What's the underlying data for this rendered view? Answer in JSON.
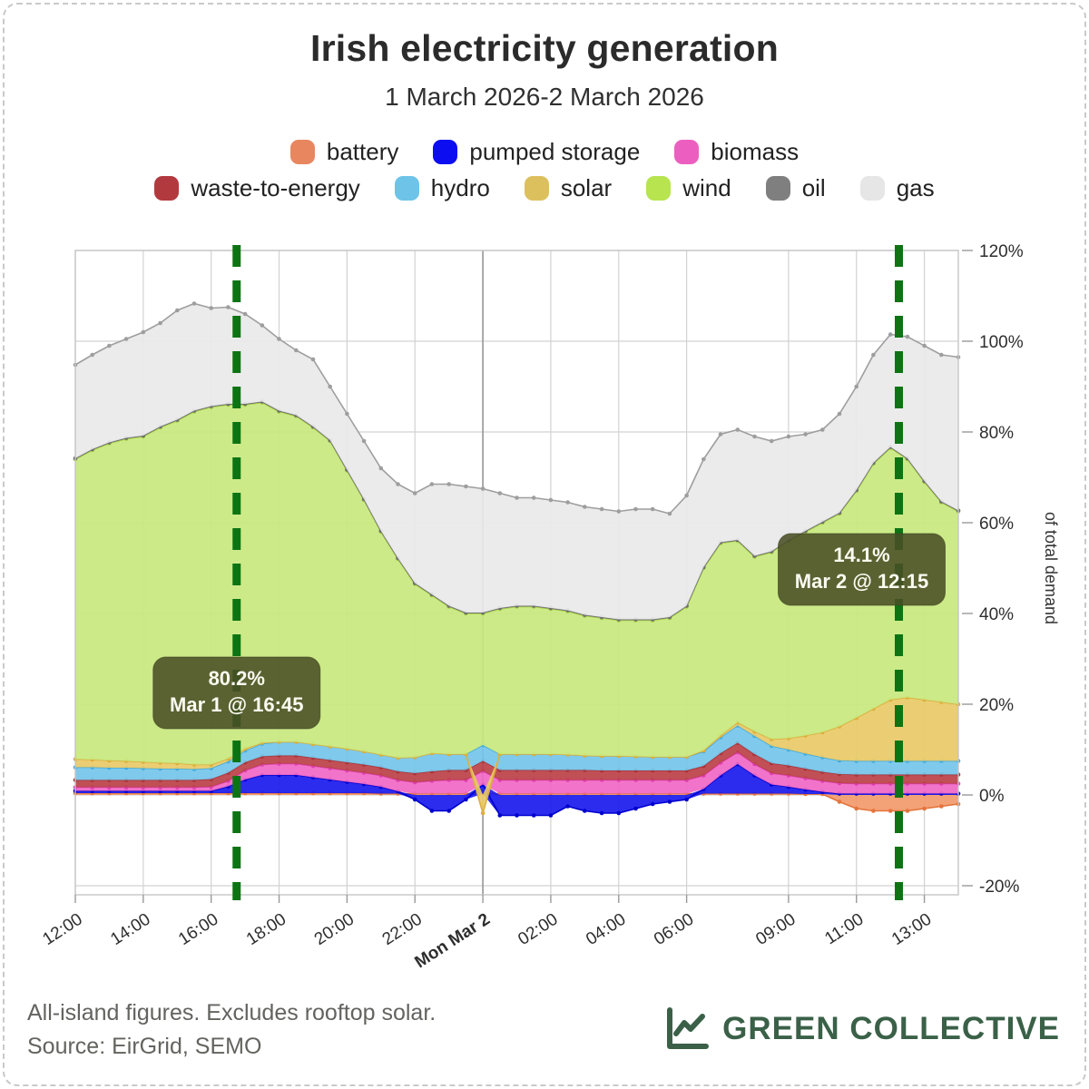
{
  "header": {
    "title": "Irish electricity generation",
    "subtitle": "1 March 2026-2 March 2026"
  },
  "legend": {
    "rows": [
      [
        0,
        1,
        2
      ],
      [
        3,
        4,
        5,
        6,
        7,
        8
      ]
    ]
  },
  "chart_data": {
    "type": "area",
    "stacked": true,
    "title": "Irish electricity generation",
    "subtitle": "1 March 2026-2 March 2026",
    "ylabel": "of total demand",
    "ylim": [
      -22,
      120
    ],
    "yticks": [
      -20,
      0,
      20,
      40,
      60,
      80,
      100,
      120
    ],
    "ytick_suffix": "%",
    "grid": true,
    "legend_position": "top-center",
    "x": {
      "start_hours": 0,
      "step_hours": 0.5,
      "count": 53,
      "start_label": "12:00 Mar 1",
      "end_label": "14:00 Mar 2"
    },
    "xticks": [
      {
        "hour": 0,
        "label": "12:00",
        "bold": false
      },
      {
        "hour": 2,
        "label": "14:00",
        "bold": false
      },
      {
        "hour": 4,
        "label": "16:00",
        "bold": false
      },
      {
        "hour": 6,
        "label": "18:00",
        "bold": false
      },
      {
        "hour": 8,
        "label": "20:00",
        "bold": false
      },
      {
        "hour": 10,
        "label": "22:00",
        "bold": false
      },
      {
        "hour": 12,
        "label": "Mon Mar 2",
        "bold": true
      },
      {
        "hour": 14,
        "label": "02:00",
        "bold": false
      },
      {
        "hour": 16,
        "label": "04:00",
        "bold": false
      },
      {
        "hour": 18,
        "label": "06:00",
        "bold": false
      },
      {
        "hour": 21,
        "label": "09:00",
        "bold": false
      },
      {
        "hour": 23,
        "label": "11:00",
        "bold": false
      },
      {
        "hour": 25,
        "label": "13:00",
        "bold": false
      }
    ],
    "series": [
      {
        "name": "battery",
        "color": "#e8875f",
        "fill": "#f2996b",
        "stroke": "#e4743c",
        "values": [
          0.4,
          0.4,
          0.4,
          0.4,
          0.4,
          0.4,
          0.4,
          0.4,
          0.4,
          0.4,
          0.4,
          0.4,
          0.4,
          0.4,
          0.4,
          0.4,
          0.4,
          0.4,
          0.3,
          0.3,
          0.3,
          0.3,
          0.3,
          0.3,
          0.3,
          0.3,
          0.3,
          0.3,
          0.3,
          0.3,
          0.3,
          0.3,
          0.3,
          0.3,
          0.3,
          0.3,
          0.3,
          0.3,
          0.3,
          0.3,
          0.3,
          0.3,
          0.3,
          0.2,
          0.2,
          -1.5,
          -3,
          -3.5,
          -3.5,
          -3.5,
          -3,
          -2.5,
          -2
        ]
      },
      {
        "name": "pumped storage",
        "color": "#0d0df2",
        "fill": "#1a1aee",
        "stroke": "#0000cf",
        "values": [
          0.5,
          0.5,
          0.5,
          0.5,
          0.5,
          0.5,
          0.5,
          0.5,
          0.5,
          1.5,
          3,
          4,
          4,
          4,
          3.5,
          3,
          2.5,
          2,
          1.5,
          0.5,
          -1,
          -3.5,
          -3.5,
          -1,
          2,
          -4.5,
          -4.5,
          -4.5,
          -4.5,
          -2.5,
          -3.5,
          -4,
          -4,
          -3,
          -2,
          -1.5,
          -1,
          1,
          4,
          6.5,
          4,
          2,
          1.5,
          1,
          0.5,
          0.3,
          0.3,
          0.3,
          0.3,
          0.3,
          0.3,
          0.3,
          0.3
        ]
      },
      {
        "name": "biomass",
        "color": "#ec5fc0",
        "fill": "#f168c5",
        "stroke": "#de3fae",
        "values": [
          0.8,
          0.8,
          0.8,
          0.8,
          0.8,
          0.8,
          0.8,
          0.8,
          0.9,
          1.2,
          2,
          2.3,
          2.5,
          2.5,
          2.5,
          2.5,
          2.5,
          2.5,
          2.5,
          2.5,
          2.5,
          2.8,
          3,
          3,
          3,
          3,
          3,
          3,
          3,
          3,
          3,
          3,
          3,
          3,
          3,
          3,
          3,
          3,
          2.8,
          2.6,
          2.5,
          2.5,
          2.5,
          2.5,
          2.4,
          2.3,
          2.2,
          2.2,
          2.2,
          2.2,
          2.2,
          2.2,
          2.2
        ]
      },
      {
        "name": "waste-to-energy",
        "color": "#b23a3e",
        "fill": "#bb4146",
        "stroke": "#a83238",
        "values": [
          1.6,
          1.6,
          1.6,
          1.6,
          1.6,
          1.6,
          1.6,
          1.6,
          1.7,
          1.8,
          1.8,
          1.8,
          1.8,
          1.8,
          1.8,
          1.8,
          1.8,
          1.8,
          1.8,
          1.9,
          2,
          2.1,
          2.2,
          2.2,
          2.2,
          2.2,
          2.2,
          2.2,
          2.2,
          2.2,
          2.2,
          2.1,
          2.1,
          2.1,
          2.1,
          2.1,
          2.1,
          2.1,
          2.1,
          2.1,
          2.2,
          2.2,
          2.2,
          2.1,
          2,
          2,
          2,
          2,
          2,
          2,
          2,
          2,
          2
        ]
      },
      {
        "name": "hydro",
        "color": "#6ec4e8",
        "fill": "#74c6ea",
        "stroke": "#42abdd",
        "values": [
          2.8,
          2.8,
          2.7,
          2.7,
          2.6,
          2.5,
          2.5,
          2.4,
          2.4,
          2.5,
          2.6,
          2.8,
          3,
          3,
          3,
          3,
          3,
          2.9,
          2.8,
          3,
          3.5,
          4,
          3.5,
          3.5,
          3.5,
          3.5,
          3.5,
          3.5,
          3.5,
          3.4,
          3.2,
          3.2,
          3.2,
          3.1,
          3,
          3,
          3,
          3.2,
          3.5,
          3.8,
          4,
          3.8,
          3.5,
          3.3,
          3.2,
          3,
          3,
          3,
          3,
          3,
          3,
          3,
          3
        ]
      },
      {
        "name": "solar",
        "color": "#ddc05e",
        "fill": "#e9ca67",
        "stroke": "#dcae3c",
        "values": [
          1.8,
          1.7,
          1.6,
          1.5,
          1.4,
          1.3,
          1.2,
          1,
          0.8,
          0.6,
          0.4,
          0.2,
          0,
          0,
          0,
          0,
          0,
          0,
          0,
          0,
          0,
          0,
          0,
          0,
          -4,
          0,
          0,
          0,
          0,
          0,
          0,
          0,
          0,
          0,
          0,
          0,
          0,
          0.2,
          0.4,
          0.7,
          1,
          1.5,
          2.5,
          4,
          5.5,
          7.5,
          9.5,
          11.5,
          13.5,
          14,
          13.5,
          13,
          12.5
        ]
      },
      {
        "name": "wind",
        "color": "#b7e44f",
        "fill": "#c8e87e",
        "stroke": "#a5d23b",
        "values": [
          66.1,
          68.2,
          69.9,
          71,
          71.7,
          73.9,
          75.5,
          77.8,
          78.8,
          78,
          75.8,
          75,
          72.8,
          71.8,
          69.8,
          67.3,
          61.3,
          55.4,
          49.1,
          43.8,
          38.2,
          34.8,
          32.5,
          31,
          29,
          32,
          32.5,
          32.5,
          32,
          31.6,
          30.8,
          30.4,
          29.9,
          30,
          30.1,
          30.6,
          33.1,
          40.2,
          42.4,
          40,
          38.5,
          41.2,
          43.5,
          44.9,
          46.2,
          46.9,
          50,
          54,
          55.5,
          52.5,
          48,
          44,
          42.5
        ]
      },
      {
        "name": "oil",
        "color": "#7f7f7f",
        "fill": "#8a8a8a",
        "stroke": "#6f6f6f",
        "values": [
          0.2,
          0.2,
          0.2,
          0.2,
          0.2,
          0.2,
          0.2,
          0.2,
          0.2,
          0.2,
          0.2,
          0.2,
          0.2,
          0.2,
          0.2,
          0.2,
          0.2,
          0.2,
          0.2,
          0.2,
          0.2,
          0.2,
          0.2,
          0.2,
          0.2,
          0.2,
          0.2,
          0.2,
          0.2,
          0.2,
          0.2,
          0.2,
          0.2,
          0.2,
          0.2,
          0.2,
          0.2,
          0.2,
          0.2,
          0.2,
          0.2,
          0.2,
          0.2,
          0.2,
          0.2,
          0.2,
          0.2,
          0.2,
          0.2,
          0.2,
          0.2,
          0.2,
          0.2
        ]
      },
      {
        "name": "gas",
        "color": "#e6e6e6",
        "fill": "#e9e9e9",
        "stroke": "#9e9e9e",
        "values": [
          20.6,
          20.8,
          21.3,
          21.8,
          22.8,
          22.8,
          24.1,
          23.6,
          21.6,
          21.3,
          19.8,
          16.8,
          15.8,
          14.3,
          14.8,
          11.8,
          12.3,
          12.8,
          13.8,
          16.3,
          19.8,
          24.3,
          26.8,
          27.8,
          27.3,
          25.3,
          23.8,
          23.8,
          23.8,
          23.8,
          23.8,
          23.8,
          23.8,
          24.3,
          24.3,
          22.8,
          24.3,
          23.8,
          23.8,
          24.3,
          26.3,
          24.3,
          22.8,
          21.3,
          20.3,
          21.8,
          22.8,
          23.8,
          24.8,
          26.8,
          29.8,
          32.3,
          33.8
        ]
      }
    ],
    "annotations": [
      {
        "line1": "80.2%",
        "line2": "Mar 1 @ 16:45",
        "hour": 4.75,
        "box_color": "#4a4f25",
        "text_color": "#fbfbf0"
      },
      {
        "line1": "14.1%",
        "line2": "Mar 2 @ 12:15",
        "hour": 24.25,
        "box_color": "#4a4f25",
        "text_color": "#fbfbf0"
      }
    ],
    "marker_line_color": "#0d7414",
    "grid_color": "#d2d2d2",
    "midnight_grid_color": "#969696",
    "frame_color": "#c6c6c6",
    "axis_text_color": "#2e2e2e"
  },
  "footer": {
    "note1": "All-island figures. Excludes rooftop solar.",
    "note2": "Source: EirGrid, SEMO",
    "logo_text": "GREEN COLLECTIVE",
    "logo_color": "#3a6148"
  }
}
